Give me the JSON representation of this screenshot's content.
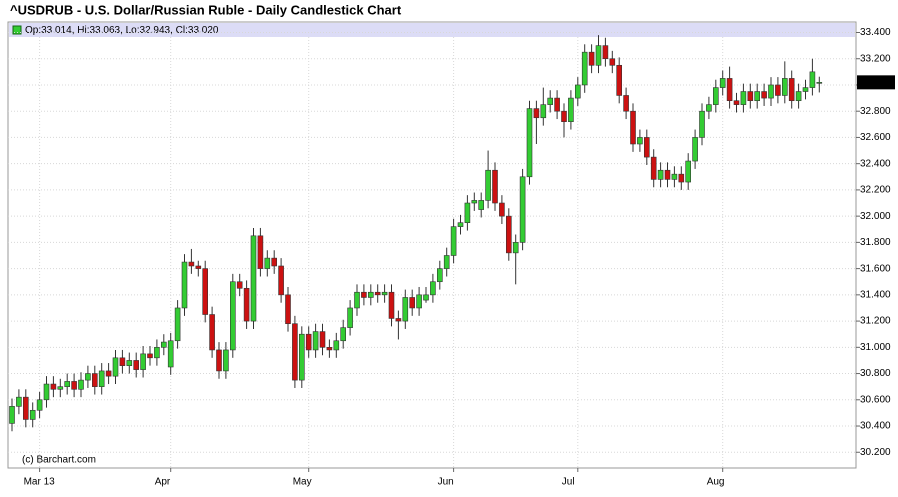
{
  "chart_data": {
    "type": "candlestick",
    "title": "^USDRUB - U.S. Dollar/Russian Ruble - Daily Candlestick Chart",
    "info_line": "Op:33.014, Hi:33.063, Lo:32.943, Cl:33.020",
    "source": "(c) Barchart.com",
    "up_color": "#33cc33",
    "down_color": "#cc1111",
    "grid": true,
    "last_price_label": {
      "value": 33.02,
      "label": "33.020"
    },
    "ylim": [
      30.08,
      33.48
    ],
    "yticks": [
      {
        "value": 30.2,
        "label": "30.200"
      },
      {
        "value": 30.4,
        "label": "30.400"
      },
      {
        "value": 30.6,
        "label": "30.600"
      },
      {
        "value": 30.8,
        "label": "30.800"
      },
      {
        "value": 31.0,
        "label": "31.000"
      },
      {
        "value": 31.2,
        "label": "31.200"
      },
      {
        "value": 31.4,
        "label": "31.400"
      },
      {
        "value": 31.6,
        "label": "31.600"
      },
      {
        "value": 31.8,
        "label": "31.800"
      },
      {
        "value": 32.0,
        "label": "32.000"
      },
      {
        "value": 32.2,
        "label": "32.200"
      },
      {
        "value": 32.4,
        "label": "32.400"
      },
      {
        "value": 32.6,
        "label": "32.600"
      },
      {
        "value": 32.8,
        "label": "32.800"
      },
      {
        "value": 33.0,
        "label": "33.000"
      },
      {
        "value": 33.2,
        "label": "33.200"
      },
      {
        "value": 33.4,
        "label": "33.400"
      }
    ],
    "categories": [
      null,
      null,
      null,
      null,
      "Mar 13",
      null,
      null,
      null,
      null,
      null,
      null,
      null,
      null,
      null,
      null,
      null,
      null,
      null,
      null,
      null,
      null,
      null,
      null,
      "Apr",
      null,
      null,
      null,
      null,
      null,
      null,
      null,
      null,
      null,
      null,
      null,
      null,
      null,
      null,
      null,
      null,
      null,
      null,
      null,
      "May",
      null,
      null,
      null,
      null,
      null,
      null,
      null,
      null,
      null,
      null,
      null,
      null,
      null,
      null,
      null,
      null,
      null,
      null,
      null,
      null,
      "Jun",
      null,
      null,
      null,
      null,
      null,
      null,
      null,
      null,
      null,
      null,
      null,
      null,
      null,
      null,
      null,
      null,
      null,
      "Jul",
      null,
      null,
      null,
      null,
      null,
      null,
      null,
      null,
      null,
      null,
      null,
      null,
      null,
      null,
      null,
      null,
      null,
      null,
      null,
      null,
      "Aug",
      null,
      null,
      null,
      null,
      null,
      null,
      null,
      null,
      null,
      null,
      null,
      null,
      null,
      null
    ],
    "open": [
      30.42,
      30.55,
      30.62,
      30.45,
      30.52,
      30.6,
      30.72,
      30.68,
      30.7,
      30.74,
      30.68,
      30.75,
      30.8,
      30.7,
      30.82,
      30.78,
      30.92,
      30.86,
      30.9,
      30.83,
      30.95,
      30.92,
      31.0,
      30.85,
      31.05,
      31.3,
      31.65,
      31.62,
      31.6,
      31.25,
      30.98,
      30.82,
      30.98,
      31.5,
      31.45,
      31.2,
      31.85,
      31.6,
      31.68,
      31.62,
      31.4,
      31.18,
      30.75,
      31.1,
      30.98,
      31.12,
      31.0,
      30.98,
      31.05,
      31.15,
      31.3,
      31.42,
      31.38,
      31.42,
      31.4,
      31.42,
      31.22,
      31.2,
      31.38,
      31.3,
      31.36,
      31.4,
      31.5,
      31.6,
      31.7,
      31.92,
      31.95,
      32.1,
      32.05,
      32.12,
      32.35,
      32.1,
      32.0,
      31.72,
      31.8,
      32.3,
      32.82,
      32.75,
      32.85,
      32.9,
      32.8,
      32.72,
      32.9,
      33.0,
      33.25,
      33.15,
      33.3,
      33.2,
      33.15,
      32.92,
      32.8,
      32.55,
      32.6,
      32.45,
      32.28,
      32.35,
      32.28,
      32.32,
      32.26,
      32.42,
      32.6,
      32.8,
      32.85,
      32.98,
      33.05,
      32.88,
      32.85,
      32.95,
      32.88,
      32.95,
      32.9,
      33.0,
      32.92,
      33.05,
      32.88,
      32.95,
      32.98,
      33.014
    ],
    "high": [
      30.61,
      30.68,
      30.68,
      30.58,
      30.66,
      30.78,
      30.78,
      30.76,
      30.8,
      30.8,
      30.81,
      30.86,
      30.86,
      30.88,
      30.88,
      30.98,
      30.98,
      30.96,
      30.96,
      31.01,
      31.01,
      31.06,
      31.1,
      31.11,
      31.36,
      31.71,
      31.75,
      31.66,
      31.66,
      31.31,
      31.04,
      31.04,
      31.56,
      31.56,
      31.51,
      31.91,
      31.91,
      31.74,
      31.74,
      31.68,
      31.46,
      31.24,
      31.16,
      31.16,
      31.18,
      31.18,
      31.06,
      31.11,
      31.21,
      31.36,
      31.48,
      31.48,
      31.48,
      31.48,
      31.48,
      31.48,
      31.28,
      31.44,
      31.44,
      31.46,
      31.46,
      31.56,
      31.66,
      31.76,
      31.98,
      32.01,
      32.16,
      32.18,
      32.18,
      32.5,
      32.41,
      32.16,
      32.06,
      31.86,
      32.36,
      32.88,
      32.88,
      32.98,
      32.96,
      32.96,
      32.86,
      32.96,
      33.06,
      33.31,
      33.31,
      33.38,
      33.36,
      33.26,
      33.21,
      32.98,
      32.86,
      32.66,
      32.66,
      32.51,
      32.41,
      32.41,
      32.38,
      32.38,
      32.48,
      32.66,
      32.86,
      32.91,
      33.04,
      33.11,
      33.14,
      32.94,
      33.01,
      33.01,
      33.01,
      33.01,
      33.06,
      33.06,
      33.18,
      33.11,
      33.01,
      33.04,
      33.2,
      33.063
    ],
    "low": [
      30.36,
      30.49,
      30.39,
      30.39,
      30.46,
      30.54,
      30.62,
      30.62,
      30.64,
      30.62,
      30.62,
      30.69,
      30.64,
      30.64,
      30.72,
      30.72,
      30.8,
      30.8,
      30.77,
      30.77,
      30.86,
      30.86,
      30.94,
      30.79,
      30.99,
      31.24,
      31.56,
      31.54,
      31.19,
      30.92,
      30.76,
      30.76,
      30.92,
      31.39,
      31.14,
      31.14,
      31.54,
      31.54,
      31.56,
      31.34,
      31.12,
      30.69,
      30.69,
      30.92,
      30.92,
      30.94,
      30.92,
      30.92,
      30.99,
      31.09,
      31.24,
      31.32,
      31.32,
      31.34,
      31.34,
      31.16,
      31.06,
      31.14,
      31.24,
      31.24,
      31.34,
      31.34,
      31.44,
      31.54,
      31.64,
      31.86,
      31.89,
      32.04,
      31.99,
      32.06,
      32.04,
      31.94,
      31.66,
      31.48,
      31.74,
      32.24,
      32.55,
      32.69,
      32.79,
      32.74,
      32.6,
      32.66,
      32.84,
      32.94,
      33.09,
      33.09,
      33.14,
      33.09,
      32.86,
      32.74,
      32.49,
      32.49,
      32.39,
      32.22,
      32.22,
      32.22,
      32.22,
      32.2,
      32.2,
      32.36,
      32.54,
      32.74,
      32.79,
      32.92,
      32.82,
      32.79,
      32.79,
      32.82,
      32.82,
      32.84,
      32.84,
      32.86,
      32.86,
      32.82,
      32.82,
      32.89,
      32.92,
      32.943
    ],
    "close": [
      30.55,
      30.62,
      30.45,
      30.52,
      30.6,
      30.72,
      30.68,
      30.7,
      30.74,
      30.68,
      30.75,
      30.8,
      30.7,
      30.82,
      30.78,
      30.92,
      30.86,
      30.9,
      30.83,
      30.95,
      30.92,
      31.0,
      31.04,
      31.05,
      31.3,
      31.65,
      31.62,
      31.6,
      31.25,
      30.98,
      30.82,
      30.98,
      31.5,
      31.45,
      31.2,
      31.85,
      31.6,
      31.68,
      31.62,
      31.4,
      31.18,
      30.75,
      31.1,
      30.98,
      31.12,
      31.0,
      30.98,
      31.05,
      31.15,
      31.3,
      31.42,
      31.38,
      31.42,
      31.4,
      31.42,
      31.22,
      31.2,
      31.38,
      31.3,
      31.4,
      31.4,
      31.5,
      31.6,
      31.7,
      31.92,
      31.95,
      32.1,
      32.12,
      32.12,
      32.35,
      32.1,
      32.0,
      31.72,
      31.8,
      32.3,
      32.82,
      32.75,
      32.85,
      32.9,
      32.8,
      32.72,
      32.9,
      33.0,
      33.25,
      33.15,
      33.3,
      33.2,
      33.15,
      32.92,
      32.8,
      32.55,
      32.6,
      32.45,
      32.28,
      32.35,
      32.28,
      32.32,
      32.26,
      32.42,
      32.6,
      32.8,
      32.85,
      32.98,
      33.05,
      32.88,
      32.85,
      32.95,
      32.88,
      32.95,
      32.9,
      33.0,
      32.92,
      33.05,
      32.88,
      32.95,
      32.98,
      33.1,
      33.02
    ]
  }
}
